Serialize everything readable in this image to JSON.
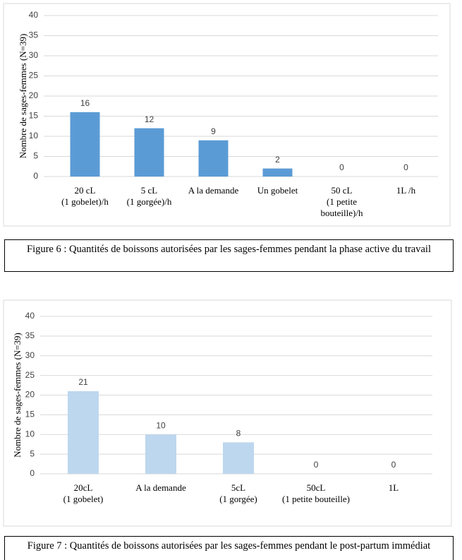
{
  "chart_data": [
    {
      "type": "bar",
      "y_label": "Nombre de sages-femmes (N=39)",
      "categories": [
        "20 cL\n(1 gobelet)/h",
        "5 cL\n(1 gorgée)/h",
        "A la demande",
        "Un gobelet",
        "50 cL\n(1 petite\nbouteille)/h",
        "1L /h"
      ],
      "values": [
        16,
        12,
        9,
        2,
        0,
        0
      ],
      "color": "#5b9bd5",
      "ylim": [
        0,
        40
      ],
      "yticks": [
        0,
        5,
        10,
        15,
        20,
        25,
        30,
        35,
        40
      ],
      "grid": true,
      "caption": "Figure 6 : Quantités de boissons autorisées par les sages-femmes pendant la phase active du travail"
    },
    {
      "type": "bar",
      "y_label": "Nombre de sages-femmes (N=39)",
      "categories": [
        "20cL\n(1 gobelet)",
        "A la demande",
        "5cL\n(1 gorgée)",
        "50cL\n(1 petite bouteille)",
        "1L"
      ],
      "values": [
        21,
        10,
        8,
        0,
        0
      ],
      "color": "#bdd7ee",
      "ylim": [
        0,
        40
      ],
      "yticks": [
        0,
        5,
        10,
        15,
        20,
        25,
        30,
        35,
        40
      ],
      "grid": true,
      "caption": "Figure 7 : Quantités de boissons autorisées par les sages-femmes pendant le post-partum immédiat"
    }
  ]
}
